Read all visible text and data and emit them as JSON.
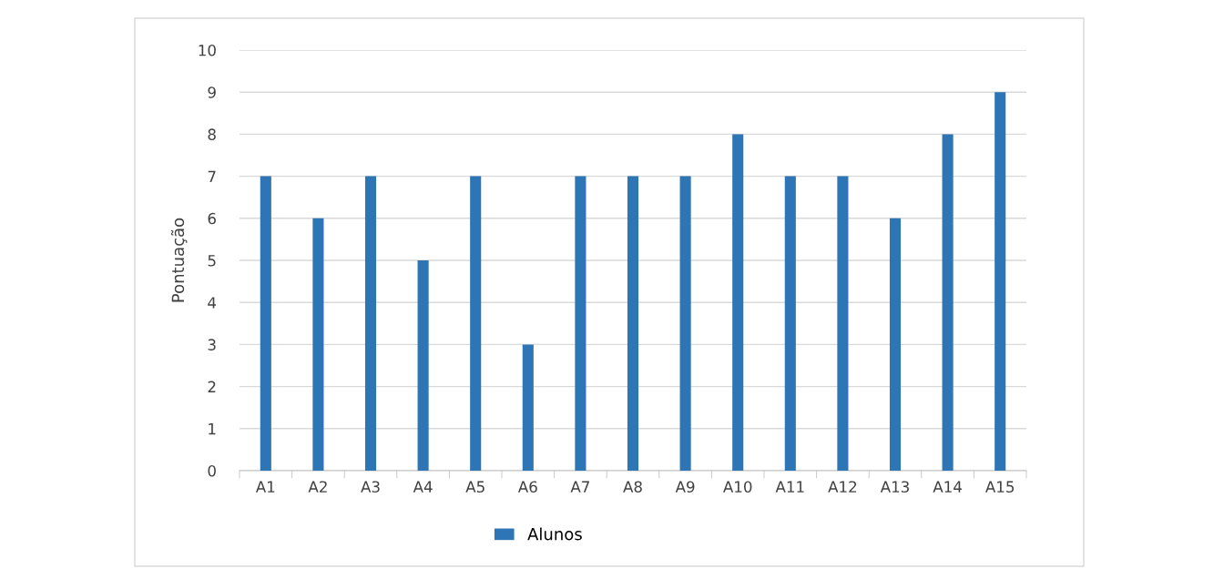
{
  "chart_data": {
    "type": "bar",
    "ylabel": "Pontuação",
    "categories": [
      "A1",
      "A2",
      "A3",
      "A4",
      "A5",
      "A6",
      "A7",
      "A8",
      "A9",
      "A10",
      "A11",
      "A12",
      "A13",
      "A14",
      "A15"
    ],
    "series": [
      {
        "name": "Alunos",
        "color": "#2e75b6",
        "values": [
          7,
          6,
          7,
          5,
          7,
          3,
          7,
          7,
          7,
          8,
          7,
          7,
          6,
          8,
          9
        ]
      }
    ],
    "ylim": [
      0,
      10
    ],
    "yticks": [
      0,
      1,
      2,
      3,
      4,
      5,
      6,
      7,
      8,
      9,
      10
    ],
    "grid": "y",
    "legend": "bottom"
  }
}
